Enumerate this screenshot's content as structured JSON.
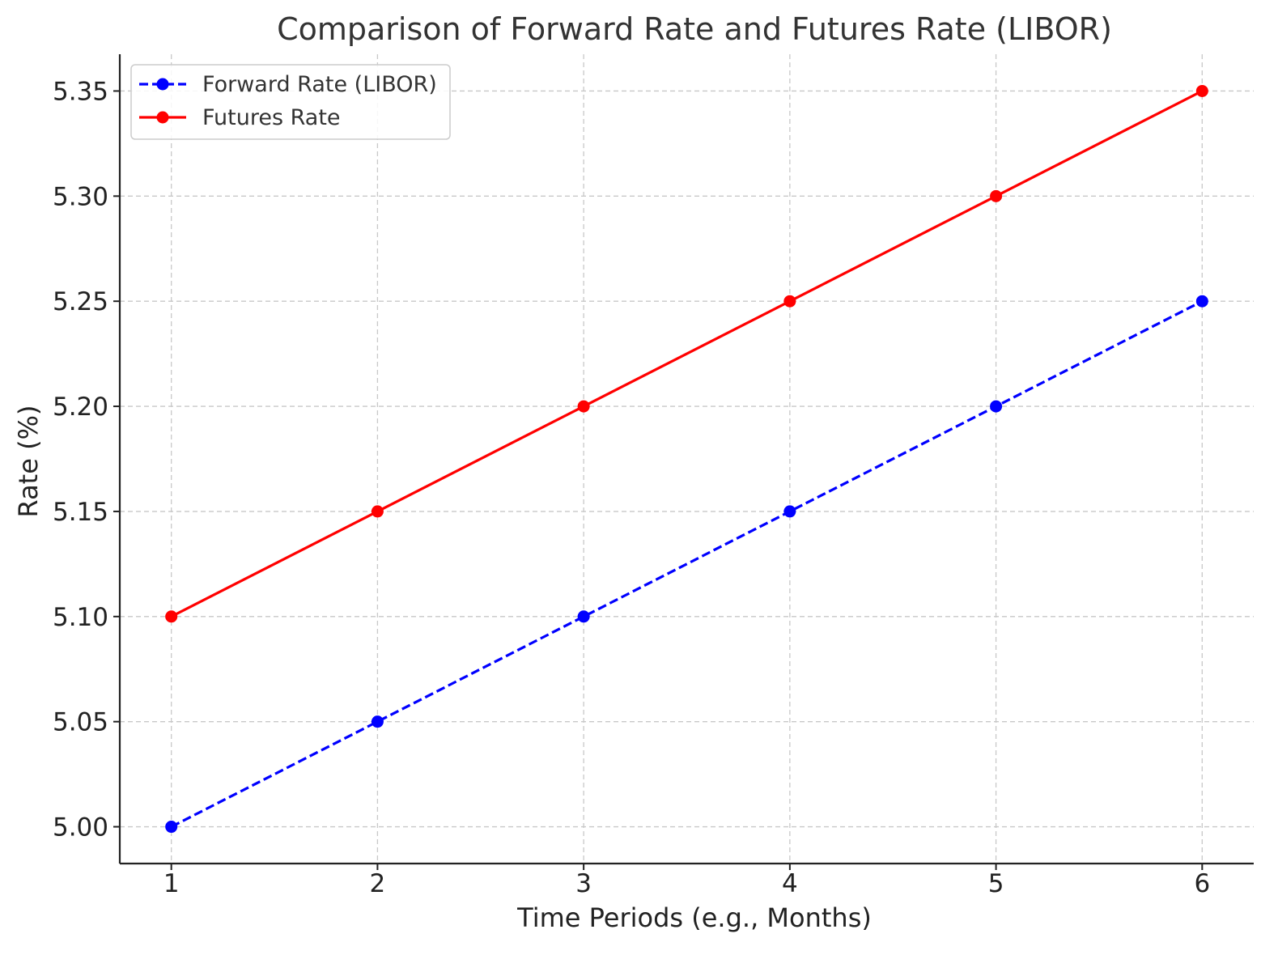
{
  "chart_data": {
    "type": "line",
    "title": "Comparison of Forward Rate and Futures Rate (LIBOR)",
    "xlabel": "Time Periods (e.g., Months)",
    "ylabel": "Rate (%)",
    "x": [
      1,
      2,
      3,
      4,
      5,
      6
    ],
    "xticks": [
      "1",
      "2",
      "3",
      "4",
      "5",
      "6"
    ],
    "yticks": [
      "5.00",
      "5.05",
      "5.10",
      "5.15",
      "5.20",
      "5.25",
      "5.30",
      "5.35"
    ],
    "xlim": [
      0.75,
      6.25
    ],
    "ylim": [
      4.9825,
      5.3675
    ],
    "grid": true,
    "legend_position": "top-left",
    "series": [
      {
        "name": "Forward Rate (LIBOR)",
        "values": [
          5.0,
          5.05,
          5.1,
          5.15,
          5.2,
          5.25
        ],
        "color": "#0000ff",
        "line_style": "dashed",
        "marker": "circle"
      },
      {
        "name": "Futures Rate",
        "values": [
          5.1,
          5.15,
          5.2,
          5.25,
          5.3,
          5.35
        ],
        "color": "#ff0000",
        "line_style": "solid",
        "marker": "circle"
      }
    ]
  }
}
